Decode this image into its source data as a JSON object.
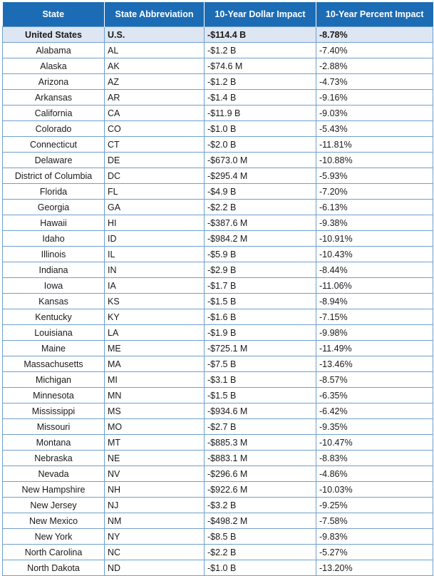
{
  "headers": [
    "State",
    "State Abbreviation",
    "10-Year Dollar Impact",
    "10-Year Percent Impact"
  ],
  "rows": [
    [
      "United States",
      "U.S.",
      "-$114.4 B",
      "-8.78%"
    ],
    [
      "Alabama",
      "AL",
      "-$1.2 B",
      "-7.40%"
    ],
    [
      "Alaska",
      "AK",
      "-$74.6 M",
      "-2.88%"
    ],
    [
      "Arizona",
      "AZ",
      "-$1.2 B",
      "-4.73%"
    ],
    [
      "Arkansas",
      "AR",
      "-$1.4 B",
      "-9.16%"
    ],
    [
      "California",
      "CA",
      "-$11.9 B",
      "-9.03%"
    ],
    [
      "Colorado",
      "CO",
      "-$1.0 B",
      "-5.43%"
    ],
    [
      "Connecticut",
      "CT",
      "-$2.0 B",
      "-11.81%"
    ],
    [
      "Delaware",
      "DE",
      "-$673.0 M",
      "-10.88%"
    ],
    [
      "District of Columbia",
      "DC",
      "-$295.4 M",
      "-5.93%"
    ],
    [
      "Florida",
      "FL",
      "-$4.9 B",
      "-7.20%"
    ],
    [
      "Georgia",
      "GA",
      "-$2.2 B",
      "-6.13%"
    ],
    [
      "Hawaii",
      "HI",
      "-$387.6 M",
      "-9.38%"
    ],
    [
      "Idaho",
      "ID",
      "-$984.2 M",
      "-10.91%"
    ],
    [
      "Illinois",
      "IL",
      "-$5.9 B",
      "-10.43%"
    ],
    [
      "Indiana",
      "IN",
      "-$2.9 B",
      "-8.44%"
    ],
    [
      "Iowa",
      "IA",
      "-$1.7 B",
      "-11.06%"
    ],
    [
      "Kansas",
      "KS",
      "-$1.5 B",
      "-8.94%"
    ],
    [
      "Kentucky",
      "KY",
      "-$1.6 B",
      "-7.15%"
    ],
    [
      "Louisiana",
      "LA",
      "-$1.9 B",
      "-9.98%"
    ],
    [
      "Maine",
      "ME",
      "-$725.1 M",
      "-11.49%"
    ],
    [
      "Massachusetts",
      "MA",
      "-$7.5 B",
      "-13.46%"
    ],
    [
      "Michigan",
      "MI",
      "-$3.1 B",
      "-8.57%"
    ],
    [
      "Minnesota",
      "MN",
      "-$1.5 B",
      "-6.35%"
    ],
    [
      "Mississippi",
      "MS",
      "-$934.6 M",
      "-6.42%"
    ],
    [
      "Missouri",
      "MO",
      "-$2.7 B",
      "-9.35%"
    ],
    [
      "Montana",
      "MT",
      "-$885.3 M",
      "-10.47%"
    ],
    [
      "Nebraska",
      "NE",
      "-$883.1 M",
      "-8.83%"
    ],
    [
      "Nevada",
      "NV",
      "-$296.6 M",
      "-4.86%"
    ],
    [
      "New Hampshire",
      "NH",
      "-$922.6 M",
      "-10.03%"
    ],
    [
      "New Jersey",
      "NJ",
      "-$3.2 B",
      "-9.25%"
    ],
    [
      "New Mexico",
      "NM",
      "-$498.2 M",
      "-7.58%"
    ],
    [
      "New York",
      "NY",
      "-$8.5 B",
      "-9.83%"
    ],
    [
      "North Carolina",
      "NC",
      "-$2.2 B",
      "-5.27%"
    ],
    [
      "North Dakota",
      "ND",
      "-$1.0 B",
      "-13.20%"
    ]
  ],
  "colors": {
    "header_bg": "#1b6cb5",
    "header_text": "#ffffff",
    "highlight_row_bg": "#dde6f2",
    "border": "#6f9fce"
  }
}
